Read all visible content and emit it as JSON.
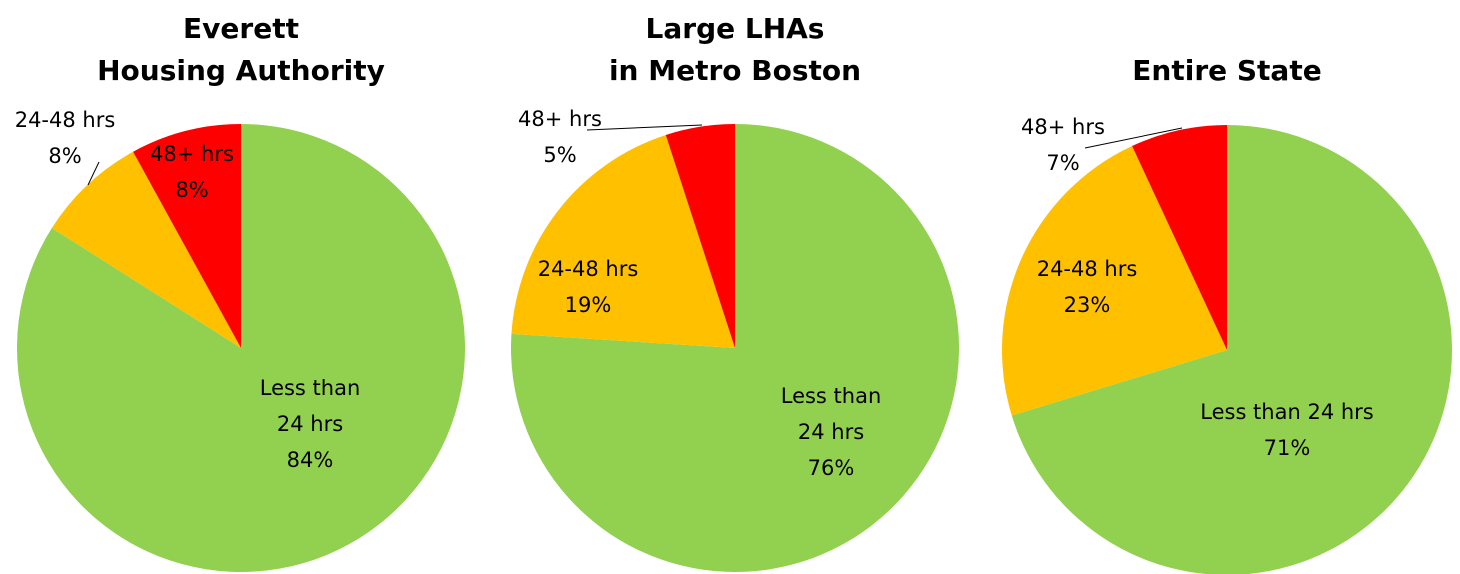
{
  "chart_data": [
    {
      "type": "pie",
      "title": [
        "Everett",
        "Housing Authority"
      ],
      "categories": [
        "Less than 24 hrs",
        "24-48 hrs",
        "48+ hrs"
      ],
      "values": [
        84,
        8,
        8
      ],
      "value_labels": [
        "84%",
        "8%",
        "8%"
      ],
      "colors": [
        "#92d050",
        "#ffc000",
        "#ff0000"
      ]
    },
    {
      "type": "pie",
      "title": [
        "Large LHAs",
        "in Metro Boston"
      ],
      "categories": [
        "Less than 24 hrs",
        "24-48 hrs",
        "48+ hrs"
      ],
      "values": [
        76,
        19,
        5
      ],
      "value_labels": [
        "76%",
        "19%",
        "5%"
      ],
      "colors": [
        "#92d050",
        "#ffc000",
        "#ff0000"
      ]
    },
    {
      "type": "pie",
      "title": [
        "Entire State"
      ],
      "categories": [
        "Less than 24 hrs",
        "24-48 hrs",
        "48+ hrs"
      ],
      "values": [
        71,
        23,
        7
      ],
      "value_labels": [
        "71%",
        "23%",
        "7%"
      ],
      "colors": [
        "#92d050",
        "#ffc000",
        "#ff0000"
      ]
    }
  ]
}
